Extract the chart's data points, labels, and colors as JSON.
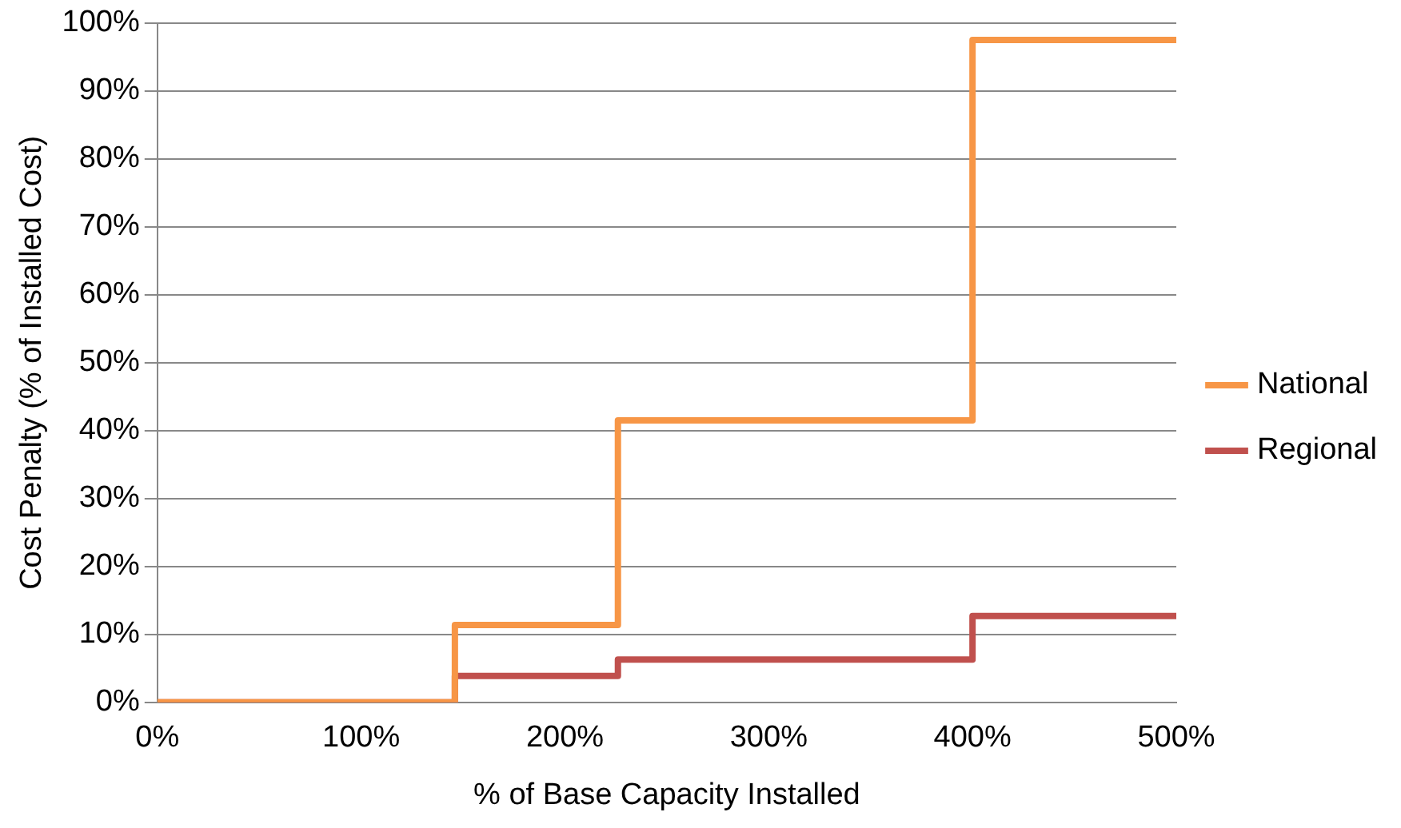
{
  "chart_data": {
    "type": "step",
    "xlabel": "% of Base Capacity Installed",
    "ylabel": "Cost Penalty (% of Installed Cost)",
    "x": [
      0,
      146,
      226,
      400,
      500
    ],
    "series": [
      {
        "name": "National",
        "color": "#f79646",
        "values": [
          0,
          11.4,
          41.5,
          97.5,
          97.5
        ]
      },
      {
        "name": "Regional",
        "color": "#c0504d",
        "values": [
          0,
          3.9,
          6.3,
          12.7,
          12.7
        ]
      }
    ],
    "xlim": [
      0,
      500
    ],
    "xticks": [
      {
        "value": 0,
        "label": "0%"
      },
      {
        "value": 100,
        "label": "100%"
      },
      {
        "value": 200,
        "label": "200%"
      },
      {
        "value": 300,
        "label": "300%"
      },
      {
        "value": 400,
        "label": "400%"
      },
      {
        "value": 500,
        "label": "500%"
      }
    ],
    "ylim": [
      0,
      100
    ],
    "yticks": [
      {
        "value": 0,
        "label": "0%"
      },
      {
        "value": 10,
        "label": "10%"
      },
      {
        "value": 20,
        "label": "20%"
      },
      {
        "value": 30,
        "label": "30%"
      },
      {
        "value": 40,
        "label": "40%"
      },
      {
        "value": 50,
        "label": "50%"
      },
      {
        "value": 60,
        "label": "60%"
      },
      {
        "value": 70,
        "label": "70%"
      },
      {
        "value": 80,
        "label": "80%"
      },
      {
        "value": 90,
        "label": "90%"
      },
      {
        "value": 100,
        "label": "100%"
      }
    ],
    "grid": "y",
    "legend": "right",
    "marker": "none",
    "line_style": "solid"
  }
}
